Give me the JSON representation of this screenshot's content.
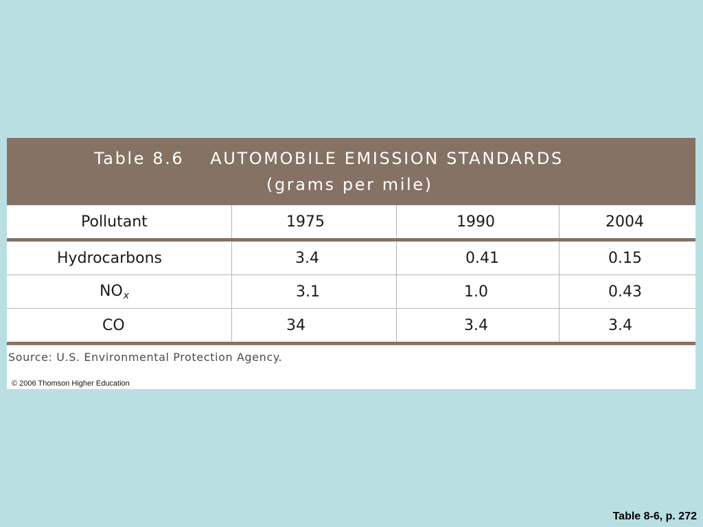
{
  "table": {
    "label": "Table 8.6",
    "title": "AUTOMOBILE EMISSION STANDARDS",
    "subtitle": "(grams per mile)",
    "columns": [
      "Pollutant",
      "1975",
      "1990",
      "2004"
    ],
    "rows": [
      {
        "pollutant": "Hydrocarbons",
        "pollutant_sub": "",
        "v1975": "3.4",
        "v1990": "0.41",
        "v2004": "0.15"
      },
      {
        "pollutant": "NO",
        "pollutant_sub": "x",
        "v1975": "3.1",
        "v1990": "1.0",
        "v2004": "0.43"
      },
      {
        "pollutant": "CO",
        "pollutant_sub": "",
        "v1975": "34",
        "v1990": "3.4",
        "v2004": "3.4"
      }
    ],
    "source": "Source: U.S. Environmental Protection Agency.",
    "copyright": "© 2006 Thomson Higher Education"
  },
  "footer": {
    "page_reference": "Table 8-6, p. 272"
  },
  "colors": {
    "background": "#b9dfe3",
    "header": "#857264"
  }
}
